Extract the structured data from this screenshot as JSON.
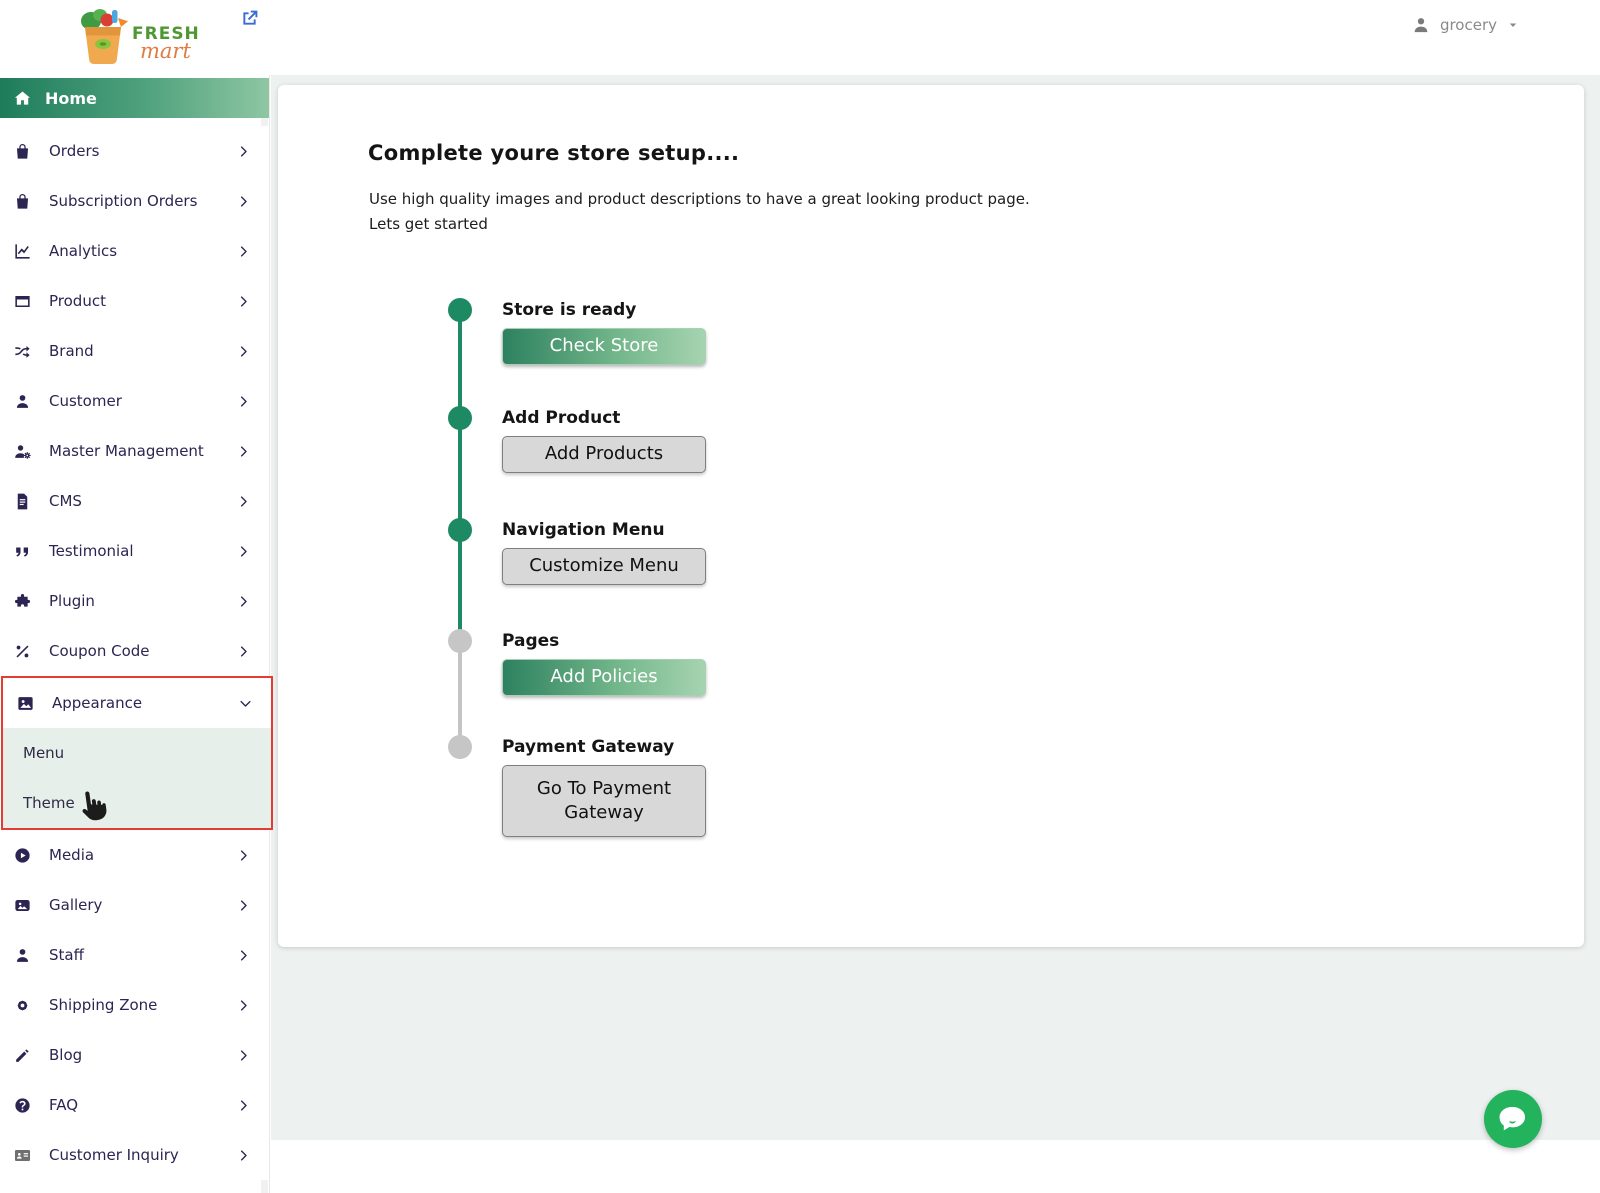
{
  "colors": {
    "accent_green": "#1d8a63",
    "gradient_start": "#2d8160",
    "gradient_end": "#a6d4b0",
    "inactive_gray": "#c6c6c6",
    "highlight_red": "#e53c31",
    "chat_green": "#22b35c"
  },
  "topbar": {
    "brand_line1": "FRESH",
    "brand_line2": "mart",
    "external_icon": "external-link",
    "user_icon": "person",
    "user_label": "grocery",
    "user_caret_icon": "caret-down"
  },
  "sidebar": {
    "home_icon": "house",
    "home_label": "Home",
    "items_top": [
      {
        "label": "Orders",
        "icon": "bag"
      },
      {
        "label": "Subscription Orders",
        "icon": "bag"
      },
      {
        "label": "Analytics",
        "icon": "chart"
      },
      {
        "label": "Product",
        "icon": "card"
      },
      {
        "label": "Brand",
        "icon": "shuffle"
      },
      {
        "label": "Customer",
        "icon": "person"
      },
      {
        "label": "Master Management",
        "icon": "person-gear"
      },
      {
        "label": "CMS",
        "icon": "document"
      },
      {
        "label": "Testimonial",
        "icon": "quote"
      },
      {
        "label": "Plugin",
        "icon": "puzzle"
      },
      {
        "label": "Coupon Code",
        "icon": "percent"
      }
    ],
    "appearance": {
      "label": "Appearance",
      "icon": "image",
      "chevron": "chevron-down",
      "submenu": [
        {
          "label": "Menu"
        },
        {
          "label": "Theme"
        }
      ]
    },
    "items_bottom": [
      {
        "label": "Media",
        "icon": "play-circle"
      },
      {
        "label": "Gallery",
        "icon": "gallery"
      },
      {
        "label": "Staff",
        "icon": "person"
      },
      {
        "label": "Shipping Zone",
        "icon": "gear"
      },
      {
        "label": "Blog",
        "icon": "pencil"
      },
      {
        "label": "FAQ",
        "icon": "help-circle"
      },
      {
        "label": "Customer Inquiry",
        "icon": "contact-card",
        "muted": true
      }
    ]
  },
  "main": {
    "heading": "Complete youre store setup....",
    "subtitle_line1": "Use high quality images and product descriptions to have a great looking product page.",
    "subtitle_line2": "Lets get started",
    "steps": [
      {
        "label": "Store is ready",
        "button": "Check Store",
        "button_style": "green",
        "dot": "green"
      },
      {
        "label": "Add Product",
        "button": "Add Products",
        "button_style": "gray",
        "dot": "green"
      },
      {
        "label": "Navigation Menu",
        "button": "Customize Menu",
        "button_style": "gray",
        "dot": "green"
      },
      {
        "label": "Pages",
        "button": "Add Policies",
        "button_style": "green",
        "dot": "gray"
      },
      {
        "label": "Payment Gateway",
        "button": "Go To Payment Gateway",
        "button_style": "gray",
        "dot": "gray"
      }
    ]
  },
  "chat": {
    "icon": "chat-bubble"
  }
}
